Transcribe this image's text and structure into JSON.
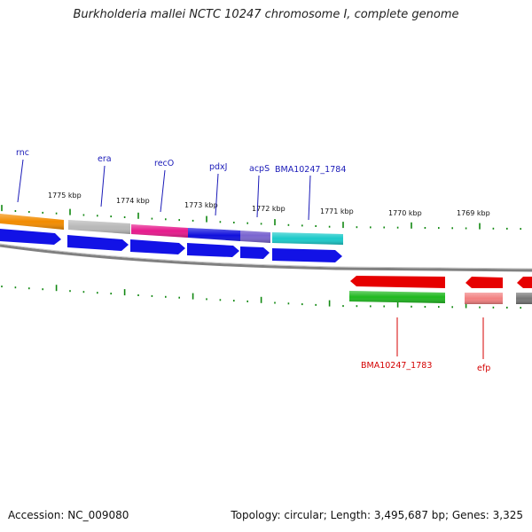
{
  "title": "Burkholderia mallei NCTC 10247 chromosome I, complete genome",
  "footer": {
    "accession": "Accession: NC_009080",
    "summary": "Topology: circular; Length: 3,495,687 bp; Genes: 3,325"
  },
  "kbp_labels": [
    "1775 kbp",
    "1774 kbp",
    "1773 kbp",
    "1772 kbp",
    "1771 kbp",
    "1770 kbp",
    "1769 kbp"
  ],
  "forward_genes": [
    {
      "name": "rnc",
      "color": "#f28c00"
    },
    {
      "name": "era",
      "color": "#b8b8b8"
    },
    {
      "name": "recO",
      "color": "#e6198c"
    },
    {
      "name": "pdxJ",
      "color": "#1010dd"
    },
    {
      "name": "acpS",
      "color": "#7a65d0"
    },
    {
      "name": "BMA10247_1784",
      "color": "#1ac9c9"
    }
  ],
  "reverse_genes": [
    {
      "name": "BMA10247_1783",
      "color": "#1fb81f"
    },
    {
      "name": "efp",
      "color": "#f28080"
    },
    {
      "name": "",
      "color": "#777777"
    }
  ],
  "colors": {
    "forward_cds": "#1212e6",
    "reverse_cds": "#e60000",
    "forward_label": "#1a1ab8",
    "reverse_label": "#d40000",
    "tick": "#118811",
    "backbone": "#808080"
  }
}
